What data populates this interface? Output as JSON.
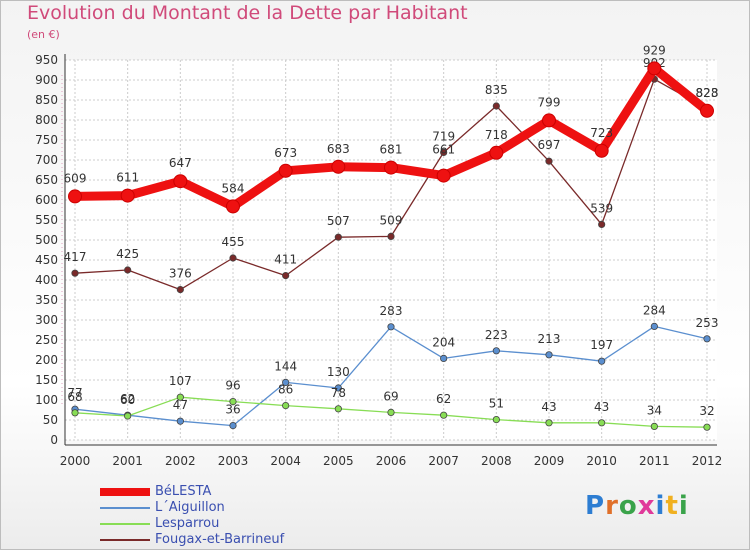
{
  "title": "Evolution du Montant de la Dette par Habitant",
  "subtitle": "(en €)",
  "logo_text": "Proxiti",
  "chart_data": {
    "type": "line",
    "title": "Evolution du Montant de la Dette par Habitant",
    "subtitle": "(en €)",
    "categories": [
      "2000",
      "2001",
      "2002",
      "2003",
      "2004",
      "2005",
      "2006",
      "2007",
      "2008",
      "2009",
      "2010",
      "2011",
      "2012"
    ],
    "ylim": [
      0,
      950
    ],
    "yticks": [
      0,
      50,
      100,
      150,
      200,
      250,
      300,
      350,
      400,
      450,
      500,
      550,
      600,
      650,
      700,
      750,
      800,
      850,
      900,
      950
    ],
    "grid": true,
    "legend_position": "bottom-left",
    "series": [
      {
        "name": "BéLESTA",
        "color": "#ee1111",
        "values": [
          609,
          611,
          647,
          584,
          673,
          683,
          681,
          661,
          718,
          799,
          723,
          929,
          823
        ],
        "label_dy": [
          -14,
          -14,
          -14,
          -14,
          -14,
          -14,
          -14,
          -22,
          -14,
          -14,
          -14,
          -14,
          -14
        ]
      },
      {
        "name": "L´Aiguillon",
        "color": "#5b8fcf",
        "values": [
          77,
          62,
          47,
          36,
          144,
          130,
          283,
          204,
          223,
          213,
          197,
          284,
          253
        ],
        "label_dy": [
          -12,
          -12,
          -12,
          -12,
          -12,
          -12,
          -12,
          -12,
          -12,
          -12,
          -12,
          -12,
          -12
        ]
      },
      {
        "name": "Lesparrou",
        "color": "#88dd55",
        "values": [
          68,
          60,
          107,
          96,
          86,
          78,
          69,
          62,
          51,
          43,
          43,
          34,
          32
        ],
        "label_dy": [
          -12,
          -12,
          -12,
          -12,
          -12,
          -12,
          -12,
          -12,
          -12,
          -12,
          -12,
          -12,
          -12
        ]
      },
      {
        "name": "Fougax-et-Barrineuf",
        "color": "#7a2a2a",
        "values": [
          417,
          425,
          376,
          455,
          411,
          507,
          509,
          719,
          835,
          697,
          539,
          902,
          828
        ],
        "label_dy": [
          -12,
          -12,
          -12,
          -12,
          -12,
          -12,
          -12,
          -12,
          -12,
          -12,
          -12,
          -12,
          -12
        ]
      }
    ]
  }
}
